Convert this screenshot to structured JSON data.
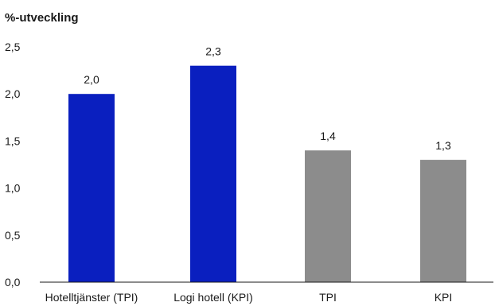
{
  "chart_data": {
    "type": "bar",
    "title": "%-utveckling",
    "xlabel": "",
    "ylabel": "",
    "ylim": [
      0,
      2.5
    ],
    "yticks": [
      "0,0",
      "0,5",
      "1,0",
      "1,5",
      "2,0",
      "2,5"
    ],
    "categories": [
      "Hotelltjänster (TPI)",
      "Logi hotell (KPI)",
      "TPI",
      "KPI"
    ],
    "values": [
      2.0,
      2.3,
      1.4,
      1.3
    ],
    "value_labels": [
      "2,0",
      "2,3",
      "1,4",
      "1,3"
    ],
    "bar_colors": [
      "#0a1fbf",
      "#0a1fbf",
      "#8c8c8c",
      "#8c8c8c"
    ],
    "grid": false,
    "legend": "none"
  }
}
